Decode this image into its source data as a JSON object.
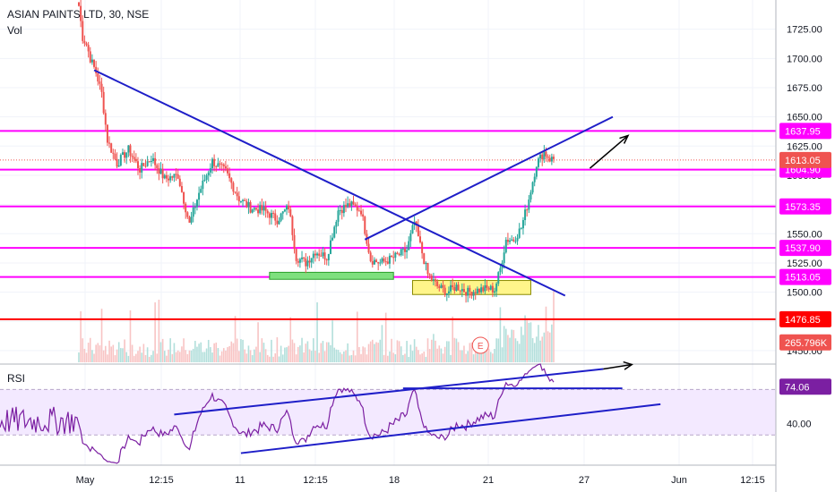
{
  "chart_data": {
    "type": "candlestick",
    "header": {
      "symbol": "ASIAN PAINTS LTD, 30, NSE",
      "indicator": "Vol"
    },
    "price_axis": {
      "min": 1440,
      "max": 1750,
      "ticks": [
        1450,
        1475,
        1500,
        1525,
        1550,
        1575,
        1600,
        1625,
        1650,
        1675,
        1700,
        1725
      ]
    },
    "time_axis": {
      "labels": [
        "May",
        "12:15",
        "11",
        "12:15",
        "18",
        "21",
        "27",
        "Jun",
        "12:15"
      ]
    },
    "price_series": {
      "name": "ASIAN PAINTS LTD",
      "up_color": "#26a69a",
      "down_color": "#ef5350",
      "keypoints": [
        [
          0,
          1745
        ],
        [
          2,
          1718
        ],
        [
          4,
          1712
        ],
        [
          6,
          1700
        ],
        [
          9,
          1688
        ],
        [
          12,
          1670
        ],
        [
          15,
          1630
        ],
        [
          20,
          1610
        ],
        [
          26,
          1622
        ],
        [
          32,
          1605
        ],
        [
          38,
          1615
        ],
        [
          45,
          1597
        ],
        [
          52,
          1600
        ],
        [
          58,
          1558
        ],
        [
          63,
          1585
        ],
        [
          70,
          1612
        ],
        [
          77,
          1603
        ],
        [
          84,
          1580
        ],
        [
          90,
          1572
        ],
        [
          97,
          1570
        ],
        [
          104,
          1562
        ],
        [
          110,
          1573
        ],
        [
          114,
          1530
        ],
        [
          119,
          1525
        ],
        [
          124,
          1535
        ],
        [
          130,
          1530
        ],
        [
          136,
          1570
        ],
        [
          142,
          1575
        ],
        [
          148,
          1570
        ],
        [
          153,
          1528
        ],
        [
          158,
          1525
        ],
        [
          163,
          1528
        ],
        [
          168,
          1532
        ],
        [
          172,
          1536
        ],
        [
          176,
          1560
        ],
        [
          179,
          1540
        ],
        [
          183,
          1515
        ],
        [
          188,
          1505
        ],
        [
          193,
          1500
        ],
        [
          198,
          1505
        ],
        [
          204,
          1500
        ],
        [
          210,
          1502
        ],
        [
          215,
          1503
        ],
        [
          218,
          1502
        ],
        [
          221,
          1520
        ],
        [
          224,
          1545
        ],
        [
          228,
          1545
        ],
        [
          232,
          1555
        ],
        [
          236,
          1580
        ],
        [
          240,
          1610
        ],
        [
          244,
          1620
        ],
        [
          247,
          1614
        ]
      ],
      "last_price": 1613.05
    },
    "horizontal_levels": [
      {
        "value": 1637.95,
        "label": "1637.95",
        "color": "#ff00ff"
      },
      {
        "value": 1604.9,
        "label": "1604.90",
        "color": "#ff00ff"
      },
      {
        "value": 1573.35,
        "label": "1573.35",
        "color": "#ff00ff"
      },
      {
        "value": 1537.9,
        "label": "1537.90",
        "color": "#ff00ff"
      },
      {
        "value": 1513.05,
        "label": "1513.05",
        "color": "#ff00ff"
      },
      {
        "value": 1476.85,
        "label": "1476.85",
        "color": "#ff0000"
      }
    ],
    "last_price_label": "1613.05",
    "volume": {
      "label": "265.796K",
      "label_color": "#ef5350"
    },
    "trendlines": [
      {
        "from": [
          8,
          1690
        ],
        "to": [
          255,
          1497
        ],
        "color": "#1e1ec8"
      },
      {
        "from": [
          150,
          1545
        ],
        "to": [
          280,
          1650
        ],
        "color": "#1e1ec8"
      }
    ],
    "boxes": [
      {
        "from": [
          100,
          1517
        ],
        "to": [
          165,
          1511
        ],
        "fill": "#7ee07e",
        "stroke": "#2aa02a"
      },
      {
        "from": [
          175,
          1510
        ],
        "to": [
          237,
          1498
        ],
        "fill": "#fff58a",
        "stroke": "#8a8a00"
      }
    ],
    "arrows": [
      {
        "from": [
          268,
          1606
        ],
        "to": [
          288,
          1634
        ]
      }
    ],
    "earnings_marker": "E",
    "rsi": {
      "name": "RSI",
      "value": 74.06,
      "value_label": "74.06",
      "axis_tick": "40.00",
      "band": [
        30,
        70
      ],
      "line_color": "#7b1fa2",
      "trendlines": [
        {
          "from": [
            50,
            48
          ],
          "to": [
            275,
            88
          ]
        },
        {
          "from": [
            85,
            14
          ],
          "to": [
            305,
            57
          ]
        },
        {
          "from": [
            170,
            71
          ],
          "to": [
            285,
            71
          ]
        }
      ],
      "arrow": {
        "from": [
          275,
          88
        ],
        "to": [
          290,
          92
        ]
      }
    }
  }
}
